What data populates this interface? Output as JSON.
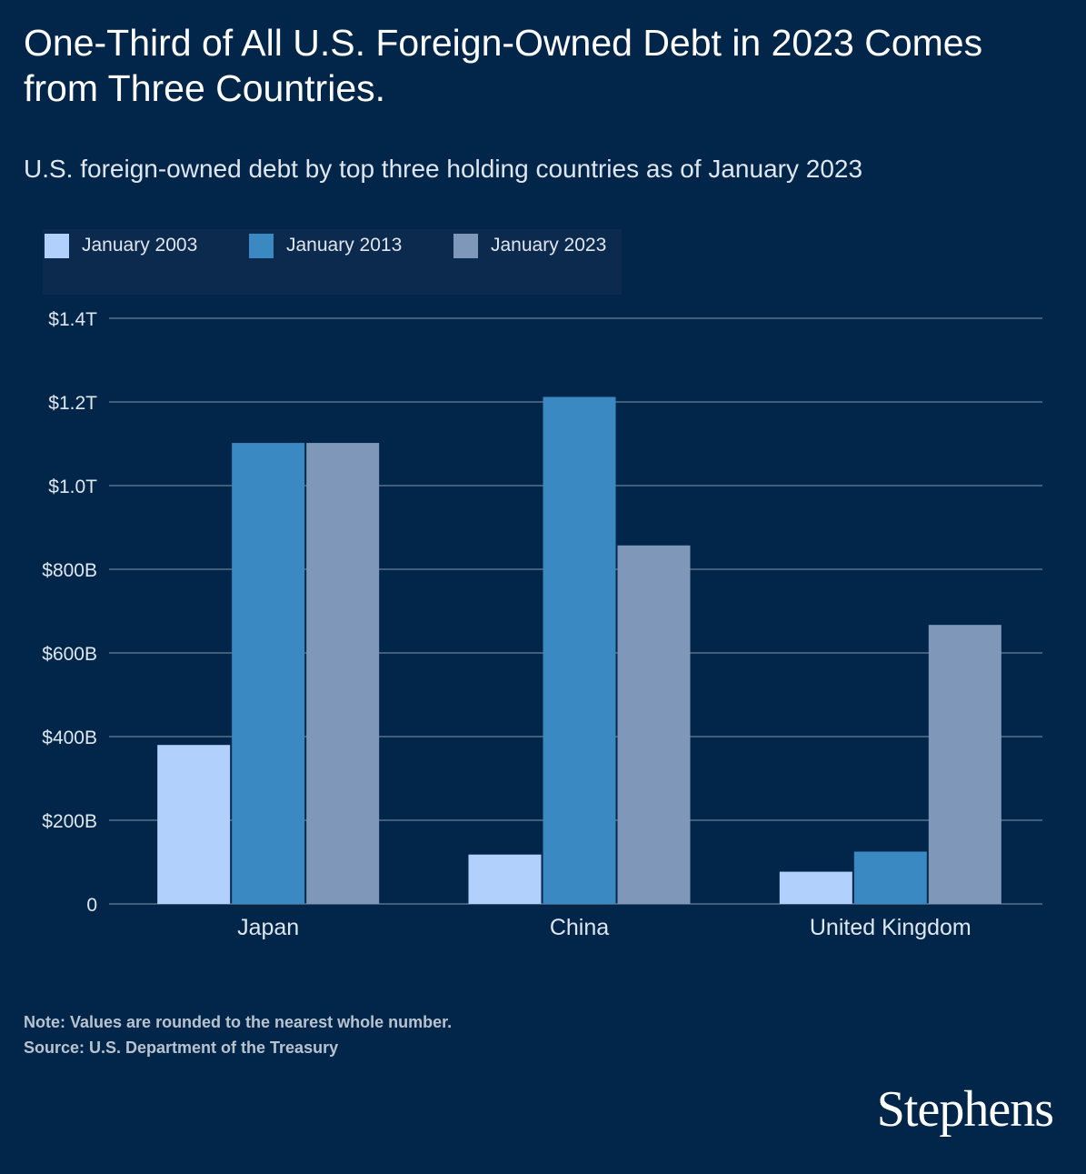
{
  "title": "One-Third of All U.S. Foreign-Owned Debt in 2023 Comes from Three Countries.",
  "subtitle": "U.S. foreign-owned debt by top three holding countries as of January 2023",
  "legend": [
    {
      "label": "January 2003",
      "color": "#b1d0fb"
    },
    {
      "label": "January 2013",
      "color": "#3b89c2"
    },
    {
      "label": "January 2023",
      "color": "#7f98b9"
    }
  ],
  "chart_data": {
    "type": "bar",
    "categories": [
      "Japan",
      "China",
      "United Kingdom"
    ],
    "series": [
      {
        "name": "January 2003",
        "values": [
          380,
          118,
          77
        ]
      },
      {
        "name": "January 2013",
        "values": [
          1102,
          1212,
          125
        ]
      },
      {
        "name": "January 2023",
        "values": [
          1102,
          857,
          667
        ]
      }
    ],
    "y_unit": "billions of US dollars",
    "ylim": [
      0,
      1400
    ],
    "yticks": [
      {
        "value": 0,
        "label": "0"
      },
      {
        "value": 200,
        "label": "$200B"
      },
      {
        "value": 400,
        "label": "$400B"
      },
      {
        "value": 600,
        "label": "$600B"
      },
      {
        "value": 800,
        "label": "$800B"
      },
      {
        "value": 1000,
        "label": "$1.0T"
      },
      {
        "value": 1200,
        "label": "$1.2T"
      },
      {
        "value": 1400,
        "label": "$1.4T"
      }
    ],
    "grid": true,
    "legend_position": "top-left"
  },
  "footer": {
    "note": "Note: Values are rounded to the nearest whole number.",
    "source": "Source: U.S. Department of the Treasury"
  },
  "logo_text": "Stephens",
  "colors": {
    "background": "#02264a",
    "gridline": "#8797ab"
  }
}
